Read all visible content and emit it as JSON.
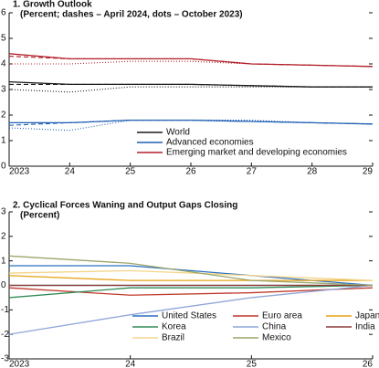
{
  "chart_data": [
    {
      "type": "line",
      "title": "1. Growth Outlook",
      "subtitle": "(Percent; dashes – April 2024, dots – October 2023)",
      "x": [
        2023,
        2024,
        2025,
        2026,
        2027,
        2028,
        2029
      ],
      "xlim": [
        2023,
        2029
      ],
      "xticks": [
        {
          "value": 2023,
          "label": "2023"
        },
        {
          "value": 2024,
          "label": "24"
        },
        {
          "value": 2025,
          "label": "25"
        },
        {
          "value": 2026,
          "label": "26"
        },
        {
          "value": 2027,
          "label": "27"
        },
        {
          "value": 2028,
          "label": "28"
        },
        {
          "value": 2029,
          "label": "29"
        }
      ],
      "ylim": [
        0,
        6
      ],
      "yticks": [
        0,
        1,
        2,
        3,
        4,
        5,
        6
      ],
      "series": [
        {
          "name": "World",
          "color": "#1a1a1a",
          "values": [
            3.3,
            3.2,
            3.2,
            3.2,
            3.15,
            3.1,
            3.1
          ],
          "dashed": [
            3.2,
            3.2,
            3.2,
            3.2,
            3.15,
            3.1,
            3.1
          ],
          "dotted": [
            3.0,
            2.9,
            3.1,
            3.1,
            3.1,
            3.1,
            3.1
          ]
        },
        {
          "name": "Advanced economies",
          "color": "#1f5fb4",
          "values": [
            1.7,
            1.7,
            1.8,
            1.8,
            1.75,
            1.7,
            1.65
          ],
          "dashed": [
            1.6,
            1.7,
            1.8,
            1.8,
            1.75,
            1.7,
            1.65
          ],
          "dotted": [
            1.5,
            1.4,
            1.8,
            1.8,
            1.8,
            1.7,
            1.65
          ]
        },
        {
          "name": "Emerging market and developing economies",
          "color": "#b2202a",
          "values": [
            4.4,
            4.2,
            4.2,
            4.2,
            4.0,
            3.95,
            3.9
          ],
          "dashed": [
            4.3,
            4.2,
            4.2,
            4.2,
            4.0,
            3.95,
            3.9
          ],
          "dotted": [
            4.0,
            4.0,
            4.1,
            4.1,
            4.0,
            3.95,
            3.9
          ]
        }
      ]
    },
    {
      "type": "line",
      "title": "2. Cyclical Forces Waning and Output Gaps Closing",
      "subtitle": "(Percent)",
      "x": [
        2023,
        2024,
        2025,
        2026
      ],
      "xlim": [
        2023,
        2026
      ],
      "xticks": [
        {
          "value": 2023,
          "label": "2023"
        },
        {
          "value": 2024,
          "label": "24"
        },
        {
          "value": 2025,
          "label": "25"
        },
        {
          "value": 2026,
          "label": "26"
        }
      ],
      "ylim": [
        -3,
        3
      ],
      "yticks": [
        -3,
        -2,
        -1,
        0,
        1,
        2,
        3
      ],
      "zero_line": true,
      "series": [
        {
          "name": "United States",
          "color": "#2a6fbf",
          "values": [
            0.8,
            0.8,
            0.4,
            0.0
          ]
        },
        {
          "name": "Euro area",
          "color": "#c0392b",
          "values": [
            -0.1,
            -0.4,
            -0.3,
            -0.1
          ]
        },
        {
          "name": "Japan",
          "color": "#e8a317",
          "values": [
            0.4,
            0.2,
            0.2,
            0.2
          ]
        },
        {
          "name": "Korea",
          "color": "#2e8b57",
          "values": [
            -0.5,
            -0.1,
            -0.1,
            0.0
          ]
        },
        {
          "name": "China",
          "color": "#8fa6d8",
          "values": [
            -2.0,
            -1.2,
            -0.5,
            0.0
          ]
        },
        {
          "name": "India",
          "color": "#8b3a3a",
          "values": [
            0.0,
            0.0,
            0.0,
            0.0
          ]
        },
        {
          "name": "Brazil",
          "color": "#f3d58a",
          "values": [
            0.5,
            0.6,
            0.4,
            0.2
          ]
        },
        {
          "name": "Mexico",
          "color": "#9aa66a",
          "values": [
            1.2,
            0.9,
            0.2,
            0.0
          ]
        }
      ]
    }
  ]
}
